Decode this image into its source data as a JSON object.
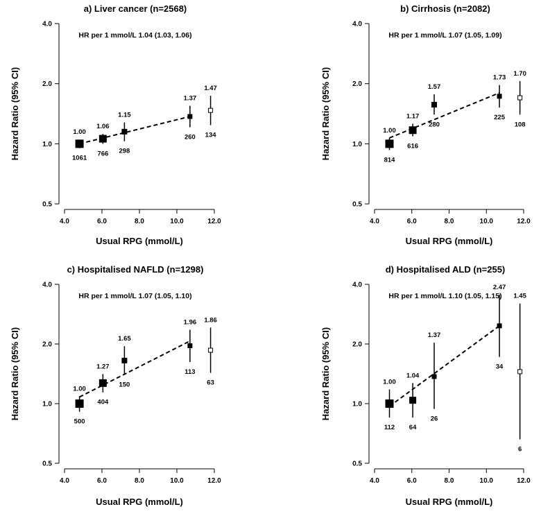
{
  "colors": {
    "ink": "#000000",
    "open_fill": "#ffffff"
  },
  "chart_data": [
    {
      "type": "scatter",
      "title": "a) Liver cancer (n=2568)",
      "subtitle": "HR per 1 mmol/L 1.04 (1.03, 1.06)",
      "xlabel": "Usual RPG (mmol/L)",
      "ylabel": "Hazard Ratio (95% CI)",
      "xlim": [
        4.0,
        12.0
      ],
      "ylim": [
        0.5,
        4.0
      ],
      "y_scale": "log",
      "x_ticks": [
        "4.0",
        "6.0",
        "8.0",
        "10.0",
        "12.0"
      ],
      "y_ticks": [
        "0.5",
        "1.0",
        "2.0",
        "4.0"
      ],
      "points": [
        {
          "x": 4.8,
          "hr": 1.0,
          "lo": 0.95,
          "hi": 1.05,
          "hr_label": "1.00",
          "n_label": "1061",
          "filled": true,
          "size": 11
        },
        {
          "x": 6.05,
          "hr": 1.06,
          "lo": 1.0,
          "hi": 1.12,
          "hr_label": "1.06",
          "n_label": "766",
          "filled": true,
          "size": 10
        },
        {
          "x": 7.2,
          "hr": 1.15,
          "lo": 1.03,
          "hi": 1.28,
          "hr_label": "1.15",
          "n_label": "298",
          "filled": true,
          "size": 7
        },
        {
          "x": 10.7,
          "hr": 1.37,
          "lo": 1.21,
          "hi": 1.55,
          "hr_label": "1.37",
          "n_label": "260",
          "filled": true,
          "size": 6
        },
        {
          "x": 11.8,
          "hr": 1.47,
          "lo": 1.24,
          "hi": 1.74,
          "hr_label": "1.47",
          "n_label": "134",
          "filled": false,
          "size": 6
        }
      ],
      "trend": {
        "x0": 4.8,
        "y0": 1.0,
        "x1": 10.7,
        "y1": 1.37
      }
    },
    {
      "type": "scatter",
      "title": "b) Cirrhosis (n=2082)",
      "subtitle": "HR per 1 mmol/L 1.07 (1.05, 1.09)",
      "xlabel": "Usual RPG (mmol/L)",
      "ylabel": "Hazard Ratio (95% CI)",
      "xlim": [
        4.0,
        12.0
      ],
      "ylim": [
        0.5,
        4.0
      ],
      "y_scale": "log",
      "x_ticks": [
        "4.0",
        "6.0",
        "8.0",
        "10.0",
        "12.0"
      ],
      "y_ticks": [
        "0.5",
        "1.0",
        "2.0",
        "4.0"
      ],
      "points": [
        {
          "x": 4.8,
          "hr": 1.0,
          "lo": 0.93,
          "hi": 1.07,
          "hr_label": "1.00",
          "n_label": "814",
          "filled": true,
          "size": 11
        },
        {
          "x": 6.05,
          "hr": 1.17,
          "lo": 1.09,
          "hi": 1.26,
          "hr_label": "1.17",
          "n_label": "616",
          "filled": true,
          "size": 10
        },
        {
          "x": 7.2,
          "hr": 1.57,
          "lo": 1.4,
          "hi": 1.77,
          "hr_label": "1.57",
          "n_label": "280",
          "filled": true,
          "size": 7
        },
        {
          "x": 10.7,
          "hr": 1.73,
          "lo": 1.52,
          "hi": 1.97,
          "hr_label": "1.73",
          "n_label": "225",
          "filled": true,
          "size": 6
        },
        {
          "x": 11.8,
          "hr": 1.7,
          "lo": 1.4,
          "hi": 2.06,
          "hr_label": "1.70",
          "n_label": "108",
          "filled": false,
          "size": 6
        }
      ],
      "trend": {
        "x0": 4.8,
        "y0": 1.07,
        "x1": 10.7,
        "y1": 1.8
      }
    },
    {
      "type": "scatter",
      "title": "c) Hospitalised NAFLD (n=1298)",
      "subtitle": "HR per 1 mmol/L 1.07 (1.05, 1.10)",
      "xlabel": "Usual RPG (mmol/L)",
      "ylabel": "Hazard Ratio (95% CI)",
      "xlim": [
        4.0,
        12.0
      ],
      "ylim": [
        0.5,
        4.0
      ],
      "y_scale": "log",
      "x_ticks": [
        "4.0",
        "6.0",
        "8.0",
        "10.0",
        "12.0"
      ],
      "y_ticks": [
        "0.5",
        "1.0",
        "2.0",
        "4.0"
      ],
      "points": [
        {
          "x": 4.8,
          "hr": 1.0,
          "lo": 0.91,
          "hi": 1.09,
          "hr_label": "1.00",
          "n_label": "500",
          "filled": true,
          "size": 11
        },
        {
          "x": 6.05,
          "hr": 1.27,
          "lo": 1.14,
          "hi": 1.41,
          "hr_label": "1.27",
          "n_label": "404",
          "filled": true,
          "size": 10
        },
        {
          "x": 7.2,
          "hr": 1.65,
          "lo": 1.4,
          "hi": 1.95,
          "hr_label": "1.65",
          "n_label": "150",
          "filled": true,
          "size": 7
        },
        {
          "x": 10.7,
          "hr": 1.96,
          "lo": 1.62,
          "hi": 2.36,
          "hr_label": "1.96",
          "n_label": "113",
          "filled": true,
          "size": 6
        },
        {
          "x": 11.8,
          "hr": 1.86,
          "lo": 1.43,
          "hi": 2.42,
          "hr_label": "1.86",
          "n_label": "63",
          "filled": false,
          "size": 6
        }
      ],
      "trend": {
        "x0": 4.8,
        "y0": 1.08,
        "x1": 10.7,
        "y1": 2.07
      }
    },
    {
      "type": "scatter",
      "title": "d) Hospitalised ALD (n=255)",
      "subtitle": "HR per 1 mmol/L 1.10 (1.05, 1.15)",
      "xlabel": "Usual RPG (mmol/L)",
      "ylabel": "Hazard Ratio (95% CI)",
      "xlim": [
        4.0,
        12.0
      ],
      "ylim": [
        0.5,
        4.0
      ],
      "y_scale": "log",
      "x_ticks": [
        "4.0",
        "6.0",
        "8.0",
        "10.0",
        "12.0"
      ],
      "y_ticks": [
        "0.5",
        "1.0",
        "2.0",
        "4.0"
      ],
      "points": [
        {
          "x": 4.8,
          "hr": 1.0,
          "lo": 0.85,
          "hi": 1.18,
          "hr_label": "1.00",
          "n_label": "112",
          "filled": true,
          "size": 11
        },
        {
          "x": 6.05,
          "hr": 1.04,
          "lo": 0.85,
          "hi": 1.27,
          "hr_label": "1.04",
          "n_label": "64",
          "filled": true,
          "size": 9
        },
        {
          "x": 7.2,
          "hr": 1.37,
          "lo": 0.94,
          "hi": 2.03,
          "hr_label": "1.37",
          "n_label": "26",
          "filled": true,
          "size": 6
        },
        {
          "x": 10.7,
          "hr": 2.47,
          "lo": 1.72,
          "hi": 3.55,
          "hr_label": "2.47",
          "n_label": "34",
          "filled": true,
          "size": 6
        },
        {
          "x": 11.8,
          "hr": 1.45,
          "lo": 0.66,
          "hi": 3.2,
          "hr_label": "1.45",
          "n_label": "6",
          "filled": false,
          "size": 6
        }
      ],
      "trend": {
        "x0": 4.8,
        "y0": 0.97,
        "x1": 10.7,
        "y1": 2.47
      }
    }
  ]
}
